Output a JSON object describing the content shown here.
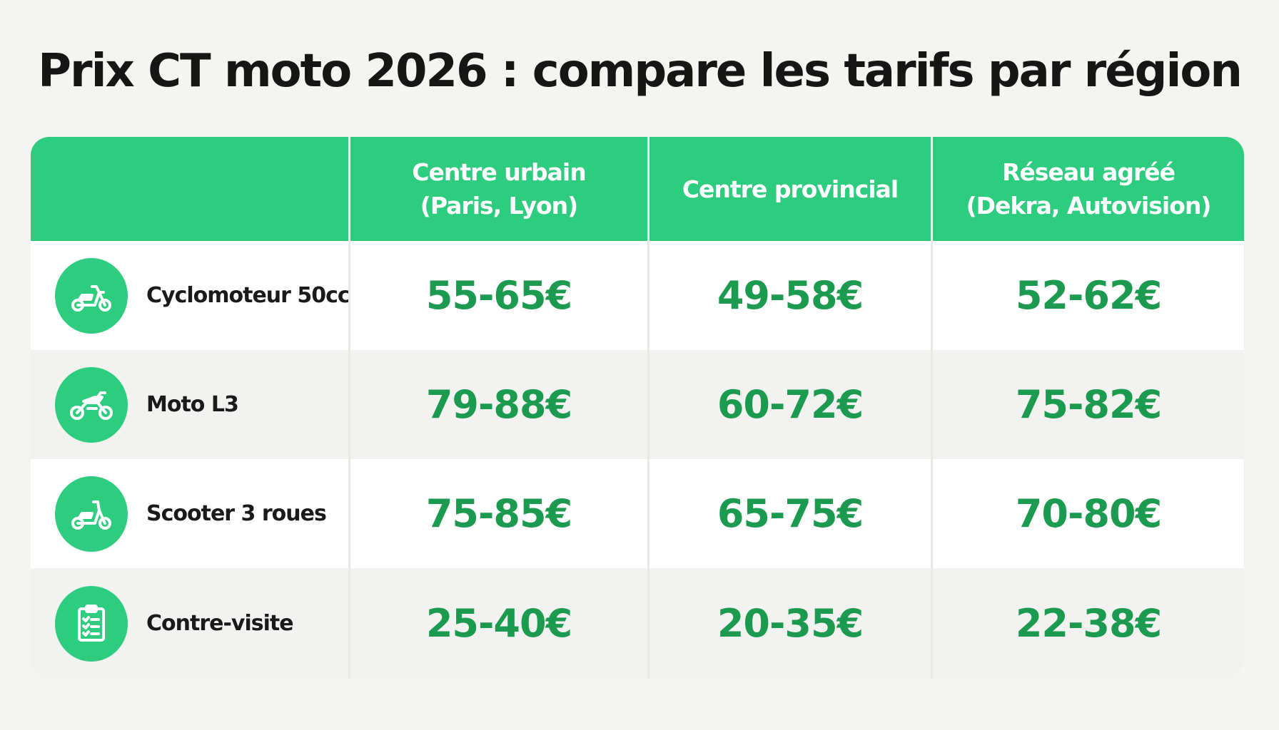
{
  "title": "Prix CT moto 2026 : compare les tarifs par région",
  "columns": [
    {
      "line1": "Centre urbain",
      "line2": "(Paris, Lyon)"
    },
    {
      "line1": "Centre provincial",
      "line2": ""
    },
    {
      "line1": "Réseau agréé",
      "line2": "(Dekra, Autovision)"
    }
  ],
  "rows": [
    {
      "label": "Cyclomoteur 50cc",
      "icon": "scooter-icon",
      "prices": [
        "55-65€",
        "49-58€",
        "52-62€"
      ]
    },
    {
      "label": "Moto L3",
      "icon": "motorcycle-icon",
      "prices": [
        "79-88€",
        "60-72€",
        "75-82€"
      ]
    },
    {
      "label": "Scooter 3 roues",
      "icon": "scooter-icon",
      "prices": [
        "75-85€",
        "65-75€",
        "70-80€"
      ]
    },
    {
      "label": "Contre-visite",
      "icon": "clipboard-checklist-icon",
      "prices": [
        "25-40€",
        "20-35€",
        "22-38€"
      ]
    }
  ],
  "colors": {
    "accent": "#2ecc7e",
    "price": "#1c9a4f",
    "background": "#f4f4f1",
    "row_alt": "#f2f2f0"
  }
}
